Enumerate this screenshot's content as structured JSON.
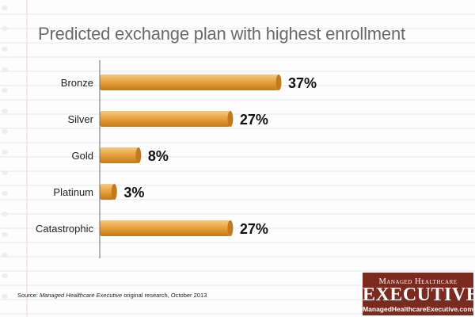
{
  "chart_data": {
    "type": "bar",
    "orientation": "horizontal",
    "title": "Predicted exchange plan with highest enrollment",
    "categories": [
      "Bronze",
      "Silver",
      "Gold",
      "Platinum",
      "Catastrophic"
    ],
    "values": [
      37,
      27,
      8,
      3,
      27
    ],
    "value_labels": [
      "37%",
      "27%",
      "8%",
      "3%",
      "27%"
    ],
    "unit": "%",
    "xlim": [
      0,
      40
    ],
    "grid": false,
    "legend": "none",
    "colors": {
      "bar_light": "#f6c982",
      "bar_mid": "#e9a33f",
      "bar_dark": "#c27a1c",
      "axis": "#6a6a6a"
    }
  },
  "source": {
    "prefix": "Source: ",
    "publication": "Managed Healthcare Executive",
    "suffix": " original research, October 2013"
  },
  "brand": {
    "top": "Managed Healthcare",
    "main": "EXECUTIVE",
    "url": "ManagedHealthcareExecutive.com",
    "color": "#7a2a1f"
  }
}
